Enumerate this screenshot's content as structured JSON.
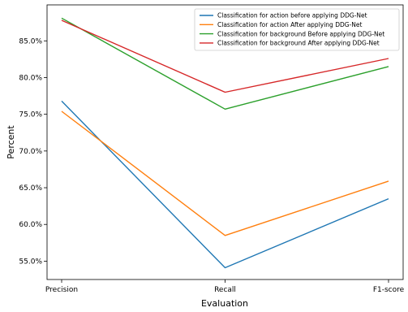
{
  "chart_data": {
    "type": "line",
    "title": "",
    "xlabel": "Evaluation",
    "ylabel": "Percent",
    "categories": [
      "Precision",
      "Recall",
      "F1-score"
    ],
    "y_ticks": [
      "55.0%",
      "60.0%",
      "65.0%",
      "70.0%",
      "75.0%",
      "80.0%",
      "85.0%"
    ],
    "ylim": [
      52.5,
      89.9
    ],
    "grid": false,
    "legend_position": "top-right",
    "series": [
      {
        "name": "Classification for action before applying DDG-Net",
        "color": "#1f77b4",
        "values": [
          76.8,
          54.1,
          63.5
        ]
      },
      {
        "name": "Classification for action After applying DDG-Net",
        "color": "#ff7f0e",
        "values": [
          75.4,
          58.5,
          65.9
        ]
      },
      {
        "name": "Classification for background Before applying DDG-Net",
        "color": "#2ca02c",
        "values": [
          88.1,
          75.7,
          81.5
        ]
      },
      {
        "name": "Classification for background After applying DDG-Net",
        "color": "#d62728",
        "values": [
          87.8,
          78.0,
          82.6
        ]
      }
    ]
  }
}
